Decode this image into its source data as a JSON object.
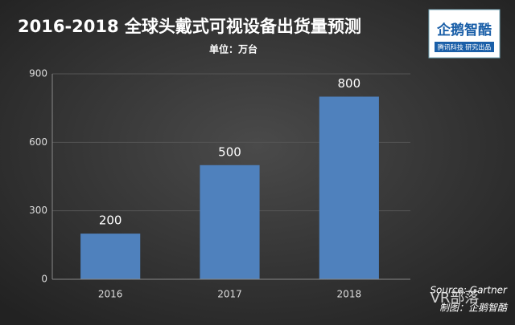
{
  "chart_data": {
    "type": "bar",
    "title": "2016-2018  全球头戴式可视设备出货量预测",
    "subtitle": "单位：万台",
    "categories": [
      "2016",
      "2017",
      "2018"
    ],
    "values": [
      200,
      500,
      800
    ],
    "color": "#4f81bd",
    "ylim": [
      0,
      900
    ],
    "yticks": [
      0,
      300,
      600,
      900
    ],
    "grid": true,
    "logo": {
      "name": "企鹅智酷",
      "tagline": "腾讯科技  研究出品"
    },
    "source": "Source: Gartner",
    "credit": "制图：企鹅智酷",
    "watermark": "VR部落"
  }
}
